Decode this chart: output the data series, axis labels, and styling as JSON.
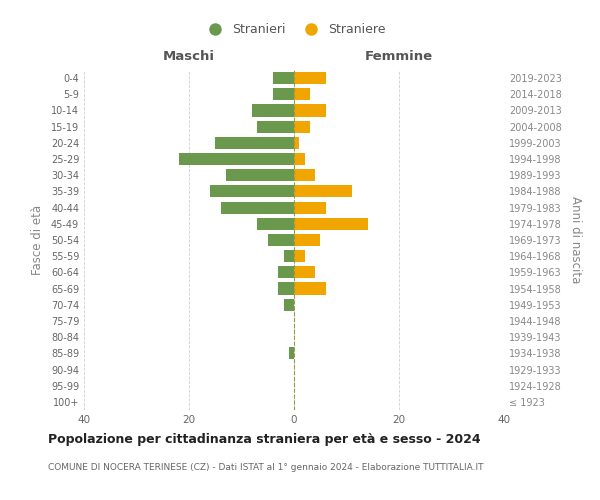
{
  "age_groups": [
    "100+",
    "95-99",
    "90-94",
    "85-89",
    "80-84",
    "75-79",
    "70-74",
    "65-69",
    "60-64",
    "55-59",
    "50-54",
    "45-49",
    "40-44",
    "35-39",
    "30-34",
    "25-29",
    "20-24",
    "15-19",
    "10-14",
    "5-9",
    "0-4"
  ],
  "birth_years": [
    "≤ 1923",
    "1924-1928",
    "1929-1933",
    "1934-1938",
    "1939-1943",
    "1944-1948",
    "1949-1953",
    "1954-1958",
    "1959-1963",
    "1964-1968",
    "1969-1973",
    "1974-1978",
    "1979-1983",
    "1984-1988",
    "1989-1993",
    "1994-1998",
    "1999-2003",
    "2004-2008",
    "2009-2013",
    "2014-2018",
    "2019-2023"
  ],
  "males": [
    0,
    0,
    0,
    1,
    0,
    0,
    2,
    3,
    3,
    2,
    5,
    7,
    14,
    16,
    13,
    22,
    15,
    7,
    8,
    4,
    4
  ],
  "females": [
    0,
    0,
    0,
    0,
    0,
    0,
    0,
    6,
    4,
    2,
    5,
    14,
    6,
    11,
    4,
    2,
    1,
    3,
    6,
    3,
    6
  ],
  "male_color": "#6a994e",
  "female_color": "#f0a500",
  "title": "Popolazione per cittadinanza straniera per età e sesso - 2024",
  "subtitle": "COMUNE DI NOCERA TERINESE (CZ) - Dati ISTAT al 1° gennaio 2024 - Elaborazione TUTTITALIA.IT",
  "left_label": "Maschi",
  "right_label": "Femmine",
  "ylabel": "Fasce di età",
  "right_ylabel": "Anni di nascita",
  "legend_male": "Stranieri",
  "legend_female": "Straniere",
  "xlim": 40,
  "background_color": "#ffffff",
  "grid_color": "#d0d0d0"
}
